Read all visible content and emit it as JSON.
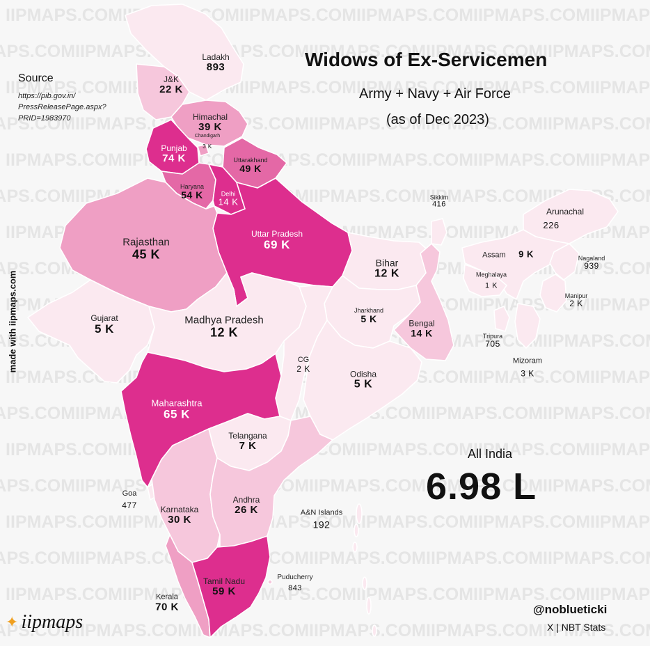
{
  "title": "Widows of Ex-Servicemen",
  "subtitle": "Army + Navy + Air Force",
  "as_of": "(as of Dec 2023)",
  "source": {
    "heading": "Source",
    "text": "https://pib.gov.in/ PressReleasePage.aspx? PRID=1983970"
  },
  "made_with": "made with iipmaps.com",
  "watermark": "IIPMAPS.COM",
  "all_india": {
    "label": "All India",
    "value": "6.98 L"
  },
  "logo": {
    "text": "iipmaps",
    "icon": "sparkle-icon"
  },
  "handle": "@noblueticki",
  "credit": "X | NBT Stats",
  "colors": {
    "c0": "#fbe9f0",
    "c1": "#f6c7dc",
    "c2": "#ef9fc4",
    "c3": "#e468a6",
    "c4": "#dd2e8e",
    "ocean": "#f7f7f7"
  },
  "states": [
    {
      "id": "ladakh",
      "name": "Ladakh",
      "value": "893"
    },
    {
      "id": "jk",
      "name": "J&K",
      "value": "22 K"
    },
    {
      "id": "himachal",
      "name": "Himachal",
      "value": "39 K"
    },
    {
      "id": "chandigarh",
      "name": "Chandigarh",
      "value": "3 K"
    },
    {
      "id": "punjab",
      "name": "Punjab",
      "value": "74 K"
    },
    {
      "id": "uttarakhand",
      "name": "Uttarakhand",
      "value": "49 K"
    },
    {
      "id": "haryana",
      "name": "Haryana",
      "value": "54 K"
    },
    {
      "id": "delhi",
      "name": "Delhi",
      "value": "14 K"
    },
    {
      "id": "up",
      "name": "Uttar Pradesh",
      "value": "69 K"
    },
    {
      "id": "rajasthan",
      "name": "Rajasthan",
      "value": "45 K"
    },
    {
      "id": "gujarat",
      "name": "Gujarat",
      "value": "5 K"
    },
    {
      "id": "mp",
      "name": "Madhya Pradesh",
      "value": "12 K"
    },
    {
      "id": "bihar",
      "name": "Bihar",
      "value": "12 K"
    },
    {
      "id": "jharkhand",
      "name": "Jharkhand",
      "value": "5 K"
    },
    {
      "id": "bengal",
      "name": "Bengal",
      "value": "14 K"
    },
    {
      "id": "sikkim",
      "name": "Sikkim",
      "value": "416"
    },
    {
      "id": "arunachal",
      "name": "Arunachal",
      "value": "226"
    },
    {
      "id": "assam",
      "name": "Assam",
      "value": "9 K"
    },
    {
      "id": "meghalaya",
      "name": "Meghalaya",
      "value": "1 K"
    },
    {
      "id": "nagaland",
      "name": "Nagaland",
      "value": "939"
    },
    {
      "id": "manipur",
      "name": "Manipur",
      "value": "2 K"
    },
    {
      "id": "tripura",
      "name": "Tripura",
      "value": "705"
    },
    {
      "id": "mizoram",
      "name": "Mizoram",
      "value": "3 K"
    },
    {
      "id": "cg",
      "name": "CG",
      "value": "2 K"
    },
    {
      "id": "odisha",
      "name": "Odisha",
      "value": "5 K"
    },
    {
      "id": "maharashtra",
      "name": "Maharashtra",
      "value": "65 K"
    },
    {
      "id": "telangana",
      "name": "Telangana",
      "value": "7 K"
    },
    {
      "id": "goa",
      "name": "Goa",
      "value": "477"
    },
    {
      "id": "karnataka",
      "name": "Karnataka",
      "value": "30 K"
    },
    {
      "id": "andhra",
      "name": "Andhra",
      "value": "26 K"
    },
    {
      "id": "an",
      "name": "A&N Islands",
      "value": "192"
    },
    {
      "id": "kerala",
      "name": "Kerala",
      "value": "70 K"
    },
    {
      "id": "tamilnadu",
      "name": "Tamil Nadu",
      "value": "59 K"
    },
    {
      "id": "puducherry",
      "name": "Puducherry",
      "value": "843"
    }
  ]
}
